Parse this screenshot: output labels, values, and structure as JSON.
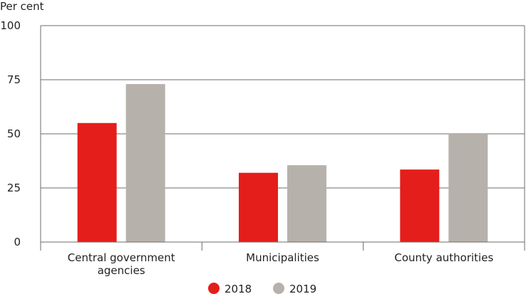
{
  "chart_data": {
    "type": "bar",
    "ylabel": "Per cent",
    "ylim": [
      0,
      100
    ],
    "yticks": [
      0,
      25,
      50,
      75,
      100
    ],
    "categories": [
      [
        "Central government",
        "agencies"
      ],
      [
        "Municipalities"
      ],
      [
        "County authorities"
      ]
    ],
    "series": [
      {
        "name": "2018",
        "color": "#e41e1b",
        "values": [
          55,
          32,
          33.5
        ]
      },
      {
        "name": "2019",
        "color": "#b7b1ab",
        "values": [
          73,
          35.5,
          50
        ]
      }
    ],
    "legend_position": "bottom-center",
    "grid": true
  }
}
